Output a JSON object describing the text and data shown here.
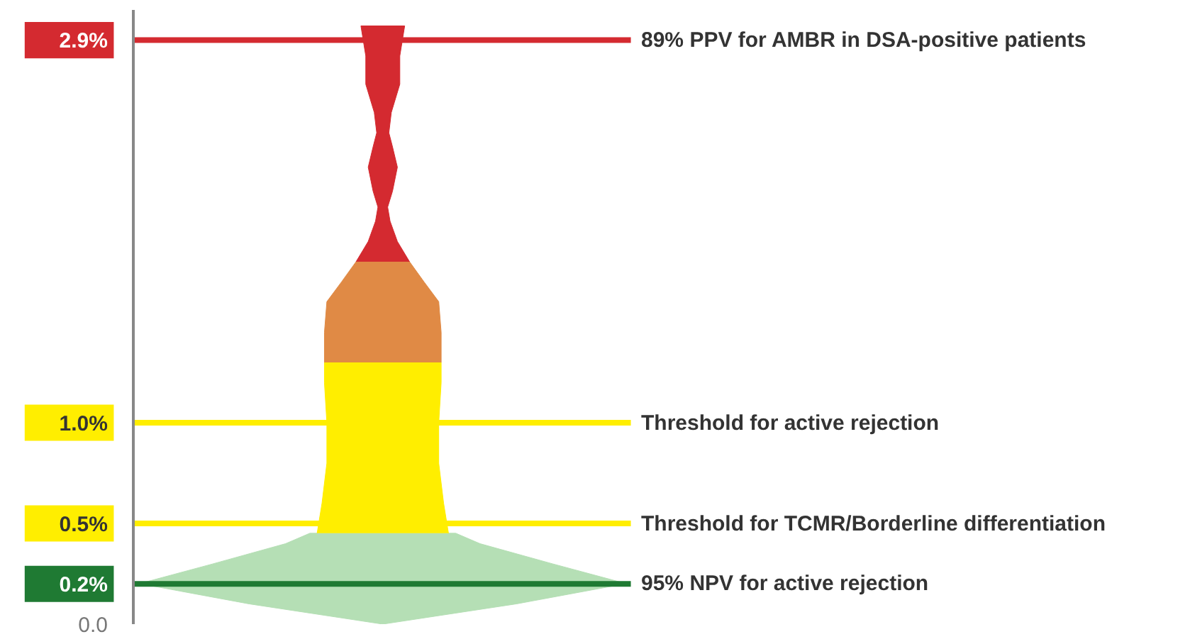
{
  "chart_data": {
    "type": "line",
    "categories": [
      null,
      null
    ],
    "ylim": [
      0,
      3.05
    ],
    "yticks": [
      {
        "value": 0,
        "label": "0.0"
      },
      {
        "value": 0.2,
        "label": "0.2%"
      },
      {
        "value": 0.5,
        "label": "0.5%"
      },
      {
        "value": 1.0,
        "label": "1.0%"
      },
      {
        "value": 2.9,
        "label": "2.9%"
      }
    ],
    "ref_lines": [
      {
        "axis": "y",
        "value": 2.9,
        "label": "89% PPV for AMBR in DSA-positive patients",
        "color": "#d42a30"
      },
      {
        "axis": "y",
        "value": 1.0,
        "label": "Threshold for active rejection",
        "color": "#ffee00"
      },
      {
        "axis": "y",
        "value": 0.5,
        "label": "Threshold for TCMR/Borderline differentiation",
        "color": "#ffee00"
      },
      {
        "axis": "y",
        "value": 0.2,
        "label": "95% NPV for active rejection",
        "color": "#1f7a33"
      }
    ]
  }
}
